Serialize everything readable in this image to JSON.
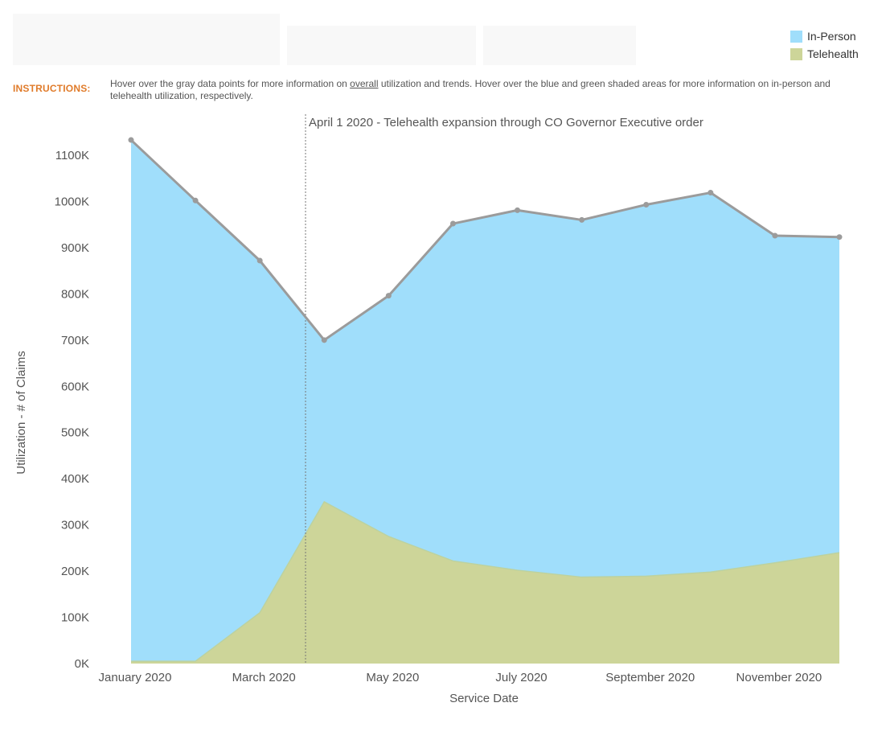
{
  "instructions": {
    "label": "INSTRUCTIONS:",
    "text_before": "Hover over the gray data points for more information on ",
    "text_underlined": "overall",
    "text_after": " utilization and trends. Hover over the blue and green shaded areas for more information on in-person and telehealth utilization, respectively."
  },
  "colors": {
    "inperson": "#a0defb",
    "telehealth": "#cdd599",
    "total_line": "#9b9b9b"
  },
  "chart_data": {
    "type": "area",
    "xlabel": "Service Date",
    "ylabel": "Utilization - # of Claims",
    "x": [
      "2020-01",
      "2020-02",
      "2020-03",
      "2020-04",
      "2020-05",
      "2020-06",
      "2020-07",
      "2020-08",
      "2020-09",
      "2020-10",
      "2020-11",
      "2020-12"
    ],
    "x_tick_labels": [
      "January 2020",
      "March 2020",
      "May 2020",
      "July 2020",
      "September 2020",
      "November 2020"
    ],
    "y_ticks": [
      "0K",
      "100K",
      "200K",
      "300K",
      "400K",
      "500K",
      "600K",
      "700K",
      "800K",
      "900K",
      "1000K",
      "1100K"
    ],
    "ylim": [
      0,
      1150000
    ],
    "series": [
      {
        "name": "Telehealth",
        "values": [
          5000,
          5000,
          110000,
          350000,
          275000,
          222000,
          202000,
          187000,
          189000,
          198000,
          218000,
          240000
        ]
      },
      {
        "name": "In-Person",
        "values": [
          1128000,
          997000,
          762000,
          350000,
          521000,
          730000,
          779000,
          773000,
          804000,
          821000,
          708000,
          683000
        ]
      }
    ],
    "total": [
      1133000,
      1002000,
      872000,
      700000,
      796000,
      952000,
      981000,
      960000,
      993000,
      1019000,
      926000,
      923000
    ],
    "annotation": {
      "x": "2020-03-23",
      "text": "April 1 2020 - Telehealth expansion through CO Governor Executive order"
    },
    "legend": {
      "position": "top-right",
      "items": [
        "In-Person",
        "Telehealth"
      ]
    },
    "grid": false
  }
}
